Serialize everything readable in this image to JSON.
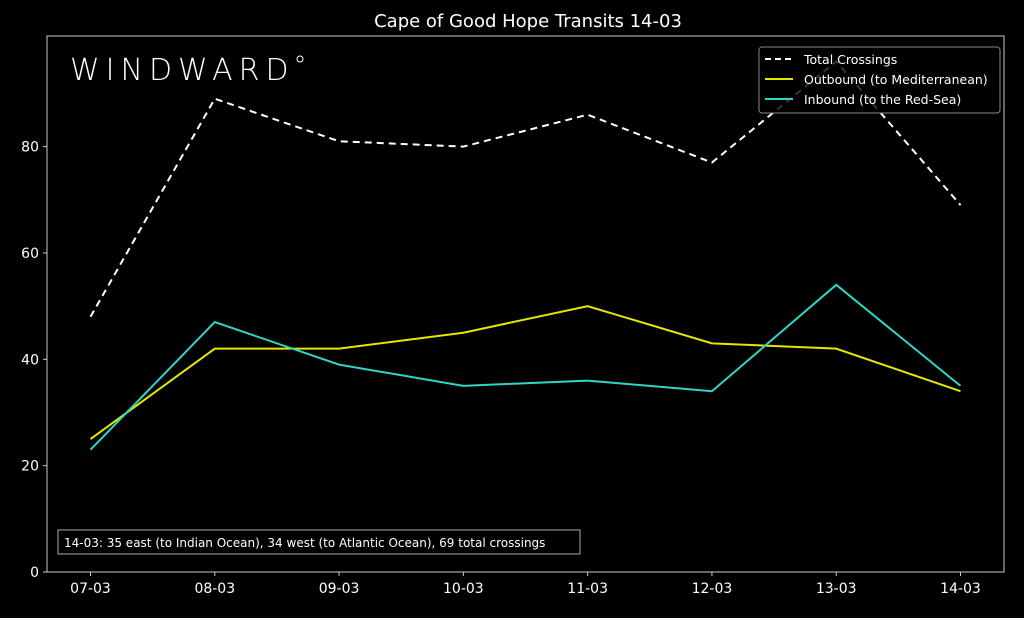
{
  "chart_data": {
    "type": "line",
    "title": "Cape of Good Hope Transits 14-03",
    "xlabel": "",
    "ylabel": "",
    "categories": [
      "07-03",
      "08-03",
      "09-03",
      "10-03",
      "11-03",
      "12-03",
      "13-03",
      "14-03"
    ],
    "ylim": [
      0,
      100.8
    ],
    "yticks": [
      0,
      20,
      40,
      60,
      80
    ],
    "grid": false,
    "legend_placement": "top-right",
    "series": [
      {
        "name": "Total Crossings",
        "values": [
          48,
          89,
          81,
          80,
          86,
          77,
          96,
          69
        ],
        "color": "#ffffff",
        "style": "dashed"
      },
      {
        "name": "Outbound (to Mediterranean)",
        "values": [
          25,
          42,
          42,
          45,
          50,
          43,
          42,
          34
        ],
        "color": "#e6e600",
        "style": "solid"
      },
      {
        "name": "Inbound (to the Red-Sea)",
        "values": [
          23,
          47,
          39,
          35,
          36,
          34,
          54,
          35
        ],
        "color": "#30d5c8",
        "style": "solid"
      }
    ],
    "annotation": "14-03: 35 east (to Indian Ocean), 34 west (to Atlantic Ocean), 69 total crossings"
  },
  "logo": "WINDWARD°"
}
